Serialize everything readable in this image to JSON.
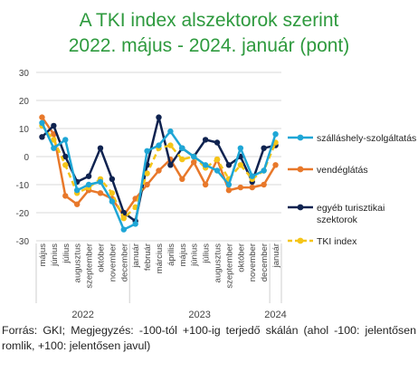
{
  "title_line1": "A TKI index alszektorok szerint",
  "title_line2": "2022. május - 2024. január (pont)",
  "footnote": "Forrás: GKI; Megjegyzés: -100-tól +100-ig terjedő skálán (ahol -100: jelentősen romlik, +100: jelentősen javul)",
  "chart_data": {
    "type": "line",
    "x": [
      "május",
      "június",
      "július",
      "augusztus",
      "szeptember",
      "október",
      "november",
      "december",
      "január",
      "február",
      "március",
      "április",
      "május",
      "június",
      "július",
      "augusztus",
      "szeptember",
      "október",
      "november",
      "december",
      "január"
    ],
    "year_groups": [
      {
        "label": "2022",
        "start": 0,
        "end": 7
      },
      {
        "label": "2023",
        "start": 8,
        "end": 19
      },
      {
        "label": "2024",
        "start": 20,
        "end": 20
      }
    ],
    "ylim": [
      -30,
      30
    ],
    "yticks": [
      30,
      20,
      10,
      0,
      -10,
      -20,
      -30
    ],
    "grid": true,
    "legend_position": "right",
    "series": [
      {
        "name": "szálláshely-szolgáltatás",
        "color": "#1ea6d6",
        "values": [
          12,
          3,
          6,
          -12,
          -10,
          -9,
          -16,
          -26,
          -24,
          2,
          4,
          9,
          3,
          0,
          -3,
          -5,
          -10,
          3,
          -7,
          -5,
          8
        ]
      },
      {
        "name": "vendéglátás",
        "color": "#e8782a",
        "values": [
          14,
          8,
          -14,
          -17,
          -12,
          -13,
          -15,
          -21,
          -15,
          -10,
          -5,
          -1,
          -8,
          -2,
          -10,
          -1,
          -12,
          -11,
          -11,
          -10,
          -3
        ]
      },
      {
        "name": "egyéb turisztikai szektorok",
        "color": "#0f2350",
        "values": [
          7,
          11,
          0,
          -9,
          -7,
          3,
          -8,
          -20,
          -23,
          -3,
          14,
          -3,
          3,
          0,
          6,
          5,
          -3,
          0,
          -9,
          3,
          4
        ]
      },
      {
        "name": "TKI index",
        "color": "#f5c518",
        "values": [
          11,
          6,
          -3,
          -13,
          -11,
          -8,
          -13,
          -22,
          -18,
          -6,
          3,
          4,
          -1,
          0,
          -4,
          -1,
          -8,
          -3,
          -8,
          -5,
          5
        ]
      }
    ]
  }
}
